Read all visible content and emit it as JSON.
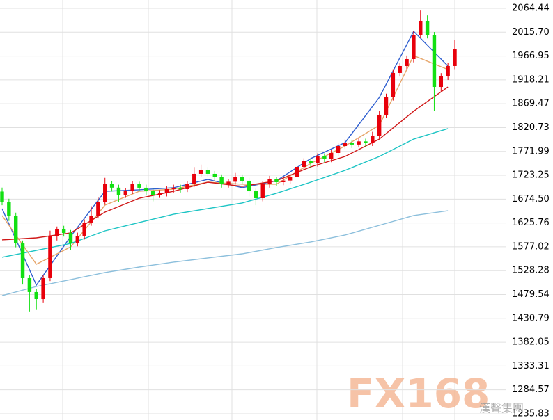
{
  "chart_data": {
    "type": "candlestick",
    "up_color": "#e8000b",
    "down_color": "#12e012",
    "grid": true,
    "ylim": [
      1223.0,
      2081.5
    ],
    "yticks": [
      2064.44,
      {
        "value": 2015.7,
        "label": "2015.70"
      },
      1966.95,
      1918.21,
      1869.47,
      1820.73,
      1771.99,
      1723.25,
      {
        "value": 1674.5,
        "label": "1674.50"
      },
      1625.76,
      1577.02,
      1528.28,
      1479.54,
      1430.79,
      1382.05,
      1333.31,
      1284.57,
      1235.83
    ],
    "open": [
      1690.0,
      1669.3,
      1640.9,
      1584.0,
      1513.0,
      1484.6,
      1470.3,
      1513.0,
      1598.3,
      1612.5,
      1605.4,
      1584.0,
      1598.3,
      1626.7,
      1640.9,
      1669.3,
      1704.9,
      1698.0,
      1683.5,
      1690.6,
      1704.9,
      1697.8,
      1690.6,
      1683.5,
      1686.4,
      1694.9,
      1697.8,
      1694.9,
      1704.9,
      1726.2,
      1733.3,
      1726.2,
      1719.1,
      1704.9,
      1710.0,
      1719.1,
      1712.0,
      1690.6,
      1676.4,
      1704.9,
      1714.8,
      1709.1,
      1712.5,
      1719.1,
      1740.4,
      1751.8,
      1747.5,
      1761.7,
      1757.4,
      1768.8,
      1783.0,
      1790.1,
      1786.0,
      1792.5,
      1789.0,
      1804.3,
      1847.0,
      1882.5,
      1932.3,
      1946.5,
      1960.7,
      2010.4,
      2038.9,
      2010.4,
      1903.8,
      1925.2,
      1946.5
    ],
    "high": [
      1698.0,
      1675.3,
      1646.9,
      1590.0,
      1519.0,
      1490.6,
      1520.0,
      1610.0,
      1618.5,
      1620.0,
      1611.4,
      1606.0,
      1633.0,
      1660.0,
      1678.0,
      1718.0,
      1712.0,
      1704.0,
      1697.0,
      1711.0,
      1710.0,
      1704.0,
      1697.0,
      1693.0,
      1701.0,
      1704.0,
      1704.0,
      1711.0,
      1740.0,
      1745.0,
      1740.0,
      1732.0,
      1725.0,
      1716.0,
      1728.0,
      1725.0,
      1718.0,
      1696.0,
      1712.0,
      1722.0,
      1720.0,
      1718.0,
      1726.0,
      1747.0,
      1758.0,
      1758.0,
      1768.0,
      1768.0,
      1775.0,
      1790.0,
      1797.0,
      1796.0,
      1799.0,
      1798.0,
      1812.0,
      1855.0,
      1890.0,
      1940.0,
      1953.0,
      1968.0,
      2018.0,
      2060.0,
      2050.0,
      2016.0,
      1932.0,
      1953.0,
      2000.0
    ],
    "low": [
      1662.0,
      1630.0,
      1576.0,
      1500.0,
      1445.0,
      1448.0,
      1462.0,
      1507.0,
      1590.0,
      1598.0,
      1570.0,
      1578.0,
      1592.0,
      1620.0,
      1635.0,
      1663.0,
      1690.0,
      1668.0,
      1677.0,
      1685.0,
      1691.0,
      1682.0,
      1670.0,
      1677.0,
      1680.0,
      1688.0,
      1688.0,
      1689.0,
      1699.0,
      1720.0,
      1719.0,
      1712.0,
      1698.0,
      1698.0,
      1704.0,
      1705.0,
      1680.0,
      1662.0,
      1670.0,
      1698.0,
      1702.0,
      1703.0,
      1706.0,
      1713.0,
      1734.0,
      1738.0,
      1741.0,
      1750.0,
      1750.0,
      1762.0,
      1777.0,
      1779.0,
      1780.0,
      1782.0,
      1783.0,
      1798.0,
      1840.0,
      1876.0,
      1925.0,
      1940.0,
      1954.0,
      2004.0,
      2003.0,
      1855.0,
      1895.0,
      1918.0,
      1940.0
    ],
    "close": [
      1669.3,
      1640.9,
      1584.0,
      1513.0,
      1484.6,
      1470.3,
      1513.0,
      1598.3,
      1612.5,
      1605.4,
      1584.0,
      1598.3,
      1626.7,
      1640.9,
      1669.3,
      1704.9,
      1698.0,
      1683.5,
      1690.6,
      1704.9,
      1697.8,
      1690.6,
      1683.5,
      1686.4,
      1694.9,
      1697.8,
      1694.9,
      1704.9,
      1726.2,
      1733.3,
      1726.2,
      1719.1,
      1704.9,
      1710.0,
      1719.1,
      1712.0,
      1690.6,
      1676.4,
      1704.9,
      1714.8,
      1709.1,
      1712.5,
      1719.1,
      1740.4,
      1751.8,
      1747.5,
      1761.7,
      1757.4,
      1768.8,
      1783.0,
      1790.1,
      1786.0,
      1792.5,
      1789.0,
      1804.3,
      1847.0,
      1882.5,
      1932.3,
      1946.5,
      1960.7,
      2010.4,
      2038.9,
      2010.4,
      1903.8,
      1925.2,
      1946.5,
      1982.0
    ],
    "lines": [
      {
        "color": "#2f5fd0",
        "x": [
          0,
          5,
          10,
          15,
          20,
          25,
          30,
          35,
          40,
          45,
          50,
          55,
          60,
          65
        ],
        "values": [
          1655.1,
          1498.8,
          1598.3,
          1690.6,
          1693.5,
          1697.8,
          1714.8,
          1697.8,
          1712.0,
          1757.4,
          1790.1,
          1882.5,
          2017.5,
          1946.5
        ]
      },
      {
        "color": "#e6a468",
        "x": [
          0,
          5,
          10,
          15,
          20,
          25,
          30,
          35,
          40,
          45,
          50,
          55,
          60,
          65
        ],
        "values": [
          1640.9,
          1541.4,
          1576.9,
          1662.2,
          1690.6,
          1694.9,
          1709.1,
          1704.9,
          1704.9,
          1747.5,
          1783.0,
          1825.7,
          1967.8,
          1939.4
        ]
      },
      {
        "color": "#d01818",
        "x": [
          0,
          5,
          10,
          15,
          20,
          25,
          30,
          35,
          40,
          45,
          50,
          55,
          60,
          65
        ],
        "values": [
          1591.2,
          1595.4,
          1605.4,
          1648.0,
          1676.4,
          1690.6,
          1709.1,
          1700.6,
          1712.0,
          1740.4,
          1761.7,
          1797.2,
          1854.1,
          1903.8
        ]
      },
      {
        "color": "#1cc4c4",
        "x": [
          0,
          5,
          10,
          15,
          20,
          25,
          30,
          35,
          40,
          45,
          50,
          55,
          60,
          65
        ],
        "values": [
          1555.6,
          1569.8,
          1584.0,
          1609.6,
          1626.7,
          1643.7,
          1655.1,
          1666.5,
          1686.4,
          1709.1,
          1733.3,
          1761.7,
          1797.2,
          1818.6
        ]
      },
      {
        "color": "#8cbfdc",
        "x": [
          0,
          5,
          10,
          15,
          20,
          25,
          30,
          35,
          40,
          45,
          50,
          55,
          60,
          65
        ],
        "values": [
          1477.4,
          1495.9,
          1510.1,
          1524.4,
          1535.7,
          1545.7,
          1554.2,
          1562.7,
          1575.5,
          1586.9,
          1601.1,
          1621.0,
          1640.9,
          1650.8
        ]
      }
    ],
    "watermark": {
      "logo": "FX168",
      "subtitle": "漢聲集團"
    }
  }
}
